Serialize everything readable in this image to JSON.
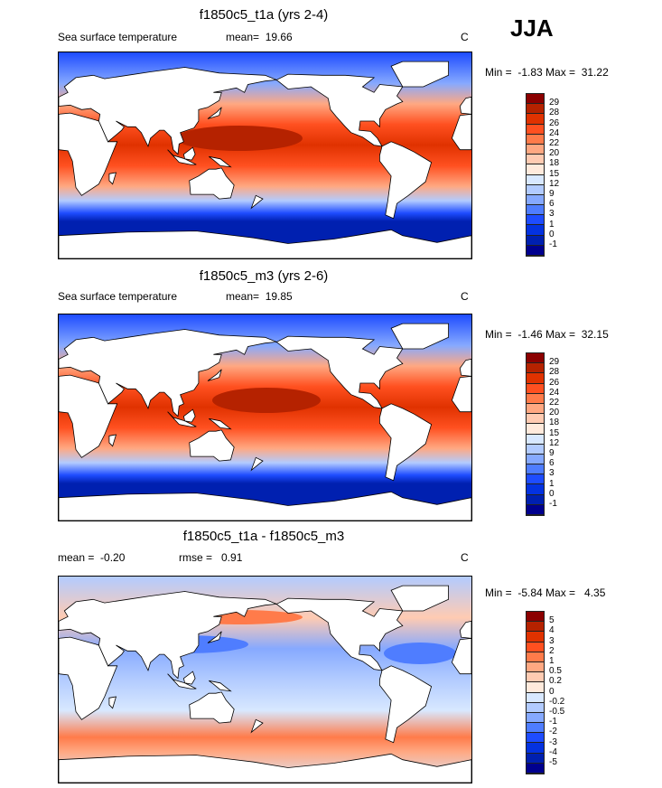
{
  "header": {
    "season": "JJA"
  },
  "panels": [
    {
      "title": "f1850c5_t1a (yrs 2-4)",
      "left": "Sea surface temperature",
      "mean": "mean=  19.66",
      "units": "C",
      "minmax": "Min =  -1.83 Max =  31.22",
      "levels": [
        "29",
        "28",
        "26",
        "24",
        "22",
        "20",
        "18",
        "15",
        "12",
        "9",
        "6",
        "3",
        "1",
        "0",
        "-1"
      ],
      "kind": "sst1"
    },
    {
      "title": "f1850c5_m3 (yrs 2-6)",
      "left": "Sea surface temperature",
      "mean": "mean=  19.85",
      "units": "C",
      "minmax": "Min =  -1.46 Max =  32.15",
      "levels": [
        "29",
        "28",
        "26",
        "24",
        "22",
        "20",
        "18",
        "15",
        "12",
        "9",
        "6",
        "3",
        "1",
        "0",
        "-1"
      ],
      "kind": "sst2"
    },
    {
      "title": "f1850c5_t1a - f1850c5_m3",
      "left": "mean =  -0.20",
      "mean": "rmse =   0.91",
      "units": "C",
      "minmax": "Min =  -5.84 Max =   4.35",
      "levels": [
        "5",
        "4",
        "3",
        "2",
        "1",
        "0.5",
        "0.2",
        "0",
        "-0.2",
        "-0.5",
        "-1",
        "-2",
        "-3",
        "-4",
        "-5"
      ],
      "kind": "diff"
    }
  ],
  "colors": [
    "#8b0000",
    "#b52200",
    "#e03200",
    "#ff5020",
    "#ff7b4a",
    "#ffa882",
    "#ffcbb2",
    "#ffeadc",
    "#d8e8ff",
    "#b2cbff",
    "#86a9ff",
    "#4f7dff",
    "#1e4cff",
    "#0432e0",
    "#0020b0",
    "#00008e"
  ]
}
